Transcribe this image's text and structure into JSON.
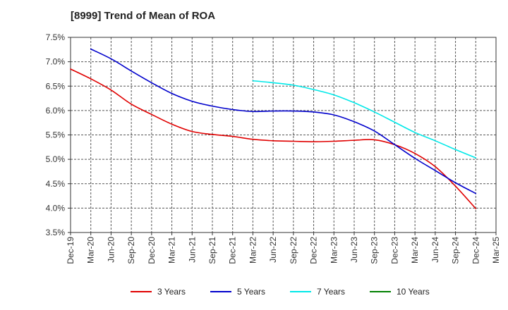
{
  "chart_data": {
    "type": "line",
    "title": "[8999]  Trend of Mean of ROA",
    "xlabel": "",
    "ylabel": "",
    "ylim": [
      3.5,
      7.5
    ],
    "y_ticks": [
      "3.5%",
      "4.0%",
      "4.5%",
      "5.0%",
      "5.5%",
      "6.0%",
      "6.5%",
      "7.0%",
      "7.5%"
    ],
    "y_tick_values": [
      3.5,
      4.0,
      4.5,
      5.0,
      5.5,
      6.0,
      6.5,
      7.0,
      7.5
    ],
    "categories": [
      "Dec-19",
      "Mar-20",
      "Jun-20",
      "Sep-20",
      "Dec-20",
      "Mar-21",
      "Jun-21",
      "Sep-21",
      "Dec-21",
      "Mar-22",
      "Jun-22",
      "Sep-22",
      "Dec-22",
      "Mar-23",
      "Jun-23",
      "Sep-23",
      "Dec-23",
      "Mar-24",
      "Jun-24",
      "Sep-24",
      "Dec-24",
      "Mar-25"
    ],
    "grid": true,
    "legend_position": "bottom",
    "series": [
      {
        "name": "3 Years",
        "color": "#e00000",
        "values": [
          6.85,
          6.65,
          6.42,
          6.13,
          5.92,
          5.72,
          5.57,
          5.51,
          5.47,
          5.41,
          5.38,
          5.37,
          5.36,
          5.37,
          5.39,
          5.4,
          5.3,
          5.12,
          4.85,
          4.45,
          3.99,
          null
        ]
      },
      {
        "name": "5 Years",
        "color": "#0000cc",
        "values": [
          null,
          7.26,
          7.06,
          6.81,
          6.57,
          6.35,
          6.19,
          6.09,
          6.02,
          5.98,
          5.99,
          5.99,
          5.97,
          5.91,
          5.77,
          5.58,
          5.3,
          5.02,
          4.77,
          4.52,
          4.3,
          null
        ]
      },
      {
        "name": "7 Years",
        "color": "#00e8e8",
        "values": [
          null,
          null,
          null,
          null,
          null,
          null,
          null,
          null,
          null,
          6.61,
          6.57,
          6.52,
          6.43,
          6.32,
          6.16,
          5.97,
          5.76,
          5.55,
          5.38,
          5.2,
          5.03,
          null
        ]
      },
      {
        "name": "10 Years",
        "color": "#008000",
        "values": [
          null,
          null,
          null,
          null,
          null,
          null,
          null,
          null,
          null,
          null,
          null,
          null,
          null,
          null,
          null,
          null,
          null,
          null,
          null,
          null,
          null,
          null
        ]
      }
    ]
  }
}
